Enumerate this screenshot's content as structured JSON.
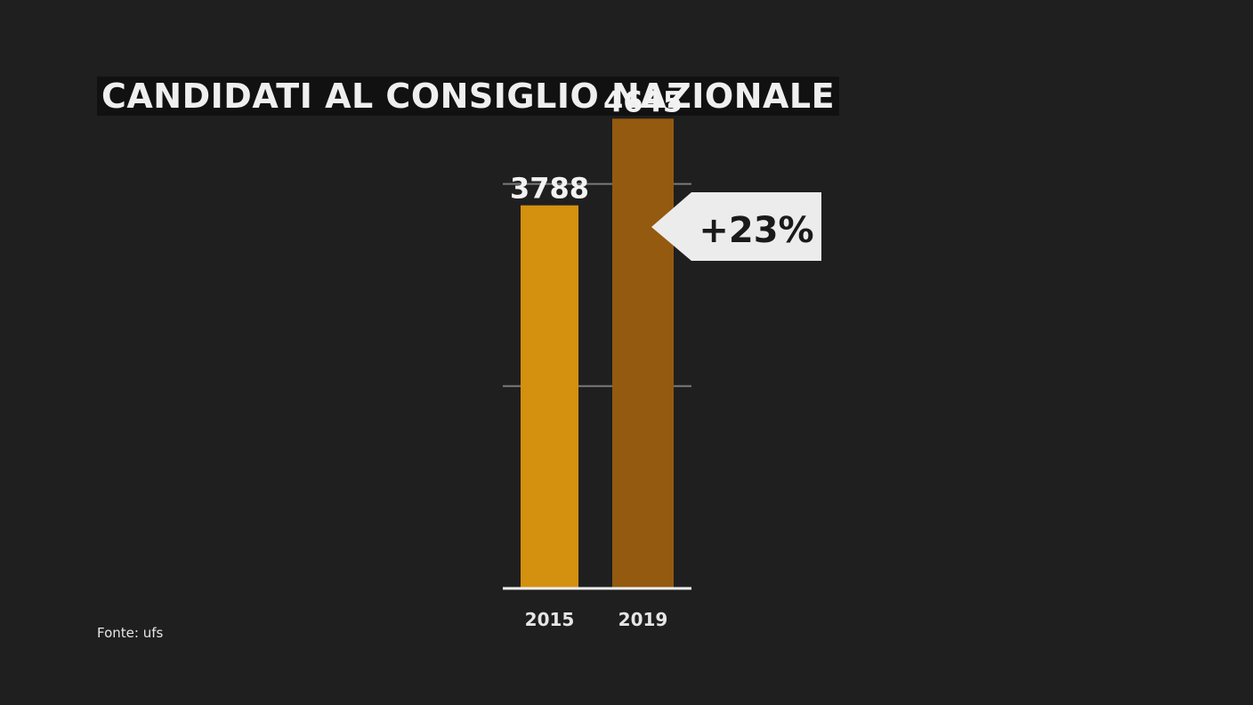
{
  "title": "CANDIDATI AL CONSIGLIO NAZIONALE",
  "source": "Fonte: ufs",
  "callout": {
    "text": "+23%"
  },
  "colors": {
    "background": "#1f1f1f",
    "bar_2015": "#d4900f",
    "bar_2019": "#935a10",
    "gridline": "#7a7a7a",
    "baseline": "#f0f0f0",
    "callout_bg": "#ececec"
  },
  "chart_data": {
    "type": "bar",
    "title": "CANDIDATI AL CONSIGLIO NAZIONALE",
    "categories": [
      "2015",
      "2019"
    ],
    "values": [
      3788,
      4645
    ],
    "value_labels": [
      "3788",
      "4645"
    ],
    "xlabel": "",
    "ylabel": "",
    "ylim": [
      0,
      5000
    ],
    "gridlines": [
      2000,
      4000
    ],
    "grid": true,
    "legend": "none",
    "annotation": "+23%"
  }
}
